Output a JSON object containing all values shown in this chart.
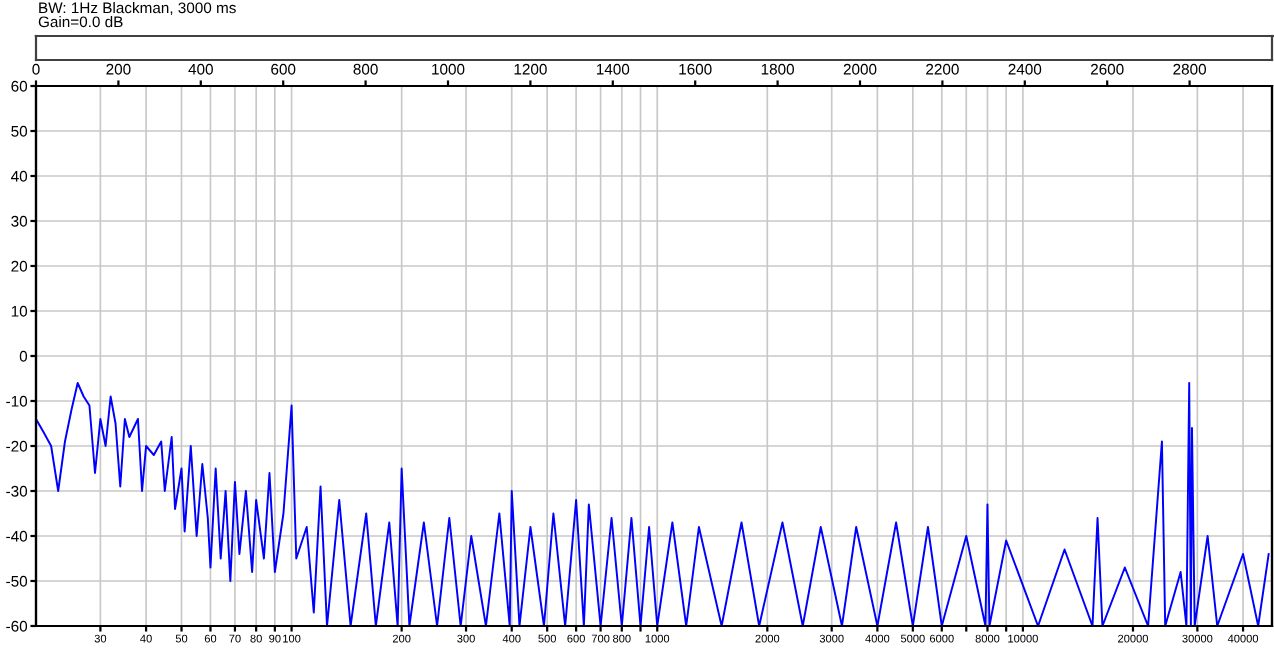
{
  "chart_data": {
    "type": "line",
    "title": "BW: 1Hz Blackman, 3000 ms",
    "subtitle": "Gain=0.0 dB",
    "series": [
      {
        "color": "#0000ff",
        "x": [
          20,
          21,
          22,
          23,
          24,
          25,
          26,
          27,
          28,
          29,
          30,
          31,
          32,
          33,
          34,
          35,
          36,
          38,
          39,
          40,
          42,
          44,
          45,
          47,
          48,
          50,
          51,
          53,
          55,
          57,
          59,
          60,
          62,
          64,
          66,
          68,
          70,
          72,
          75,
          78,
          80,
          84,
          87,
          90,
          95,
          100,
          103,
          110,
          115,
          120,
          125,
          135,
          145,
          160,
          170,
          185,
          195,
          200,
          210,
          230,
          250,
          270,
          290,
          310,
          340,
          370,
          395,
          400,
          420,
          450,
          490,
          520,
          560,
          600,
          630,
          650,
          700,
          750,
          800,
          850,
          900,
          950,
          1000,
          1100,
          1200,
          1300,
          1500,
          1700,
          1900,
          2200,
          2500,
          2800,
          3200,
          3500,
          4000,
          4500,
          5000,
          5500,
          6000,
          7000,
          7900,
          8000,
          8100,
          9000,
          11000,
          13000,
          15500,
          16000,
          16500,
          19000,
          22000,
          24000,
          24500,
          27000,
          28000,
          28500,
          28800,
          29000,
          29500,
          32000,
          34000,
          40000,
          44000,
          47000
        ],
        "values": [
          -14,
          -17,
          -20,
          -30,
          -19,
          -12,
          -6,
          -9,
          -11,
          -26,
          -14,
          -20,
          -9,
          -15,
          -29,
          -14,
          -18,
          -14,
          -30,
          -20,
          -22,
          -19,
          -30,
          -18,
          -34,
          -25,
          -39,
          -20,
          -40,
          -24,
          -36,
          -47,
          -25,
          -45,
          -30,
          -50,
          -28,
          -44,
          -30,
          -48,
          -32,
          -45,
          -26,
          -48,
          -35,
          -11,
          -45,
          -38,
          -57,
          -29,
          -60,
          -32,
          -60,
          -35,
          -60,
          -37,
          -60,
          -25,
          -60,
          -37,
          -60,
          -36,
          -60,
          -40,
          -60,
          -35,
          -60,
          -30,
          -60,
          -38,
          -60,
          -35,
          -60,
          -32,
          -60,
          -33,
          -60,
          -36,
          -60,
          -36,
          -60,
          -38,
          -60,
          -37,
          -60,
          -38,
          -60,
          -37,
          -60,
          -37,
          -60,
          -38,
          -60,
          -38,
          -60,
          -37,
          -60,
          -38,
          -60,
          -40,
          -60,
          -33,
          -60,
          -41,
          -60,
          -43,
          -60,
          -36,
          -60,
          -47,
          -60,
          -19,
          -60,
          -48,
          -60,
          -6,
          -60,
          -16,
          -60,
          -40,
          -60,
          -44,
          -60,
          -44
        ]
      }
    ],
    "log": "x",
    "xlim": [
      20,
      48000
    ],
    "xticks": [
      30,
      40,
      50,
      60,
      70,
      80,
      90,
      100,
      200,
      300,
      400,
      500,
      600,
      700,
      800,
      {
        "value": 900,
        "label": null
      },
      1000,
      2000,
      3000,
      4000,
      5000,
      6000,
      {
        "value": 7000,
        "label": null
      },
      8000,
      {
        "value": 9000,
        "label": null
      },
      10000,
      20000,
      30000,
      40000
    ],
    "ylim": [
      -60,
      60
    ],
    "yticks": [
      -60,
      -50,
      -40,
      -30,
      -20,
      -10,
      0,
      10,
      20,
      30,
      40,
      50,
      60
    ],
    "x2lim": [
      0,
      3000
    ],
    "x2ticks": [
      0,
      200,
      400,
      600,
      800,
      1000,
      1200,
      1400,
      1600,
      1800,
      2000,
      2200,
      2400,
      2600,
      2800
    ],
    "grid": true,
    "line_style": "solid",
    "marker": "none"
  }
}
